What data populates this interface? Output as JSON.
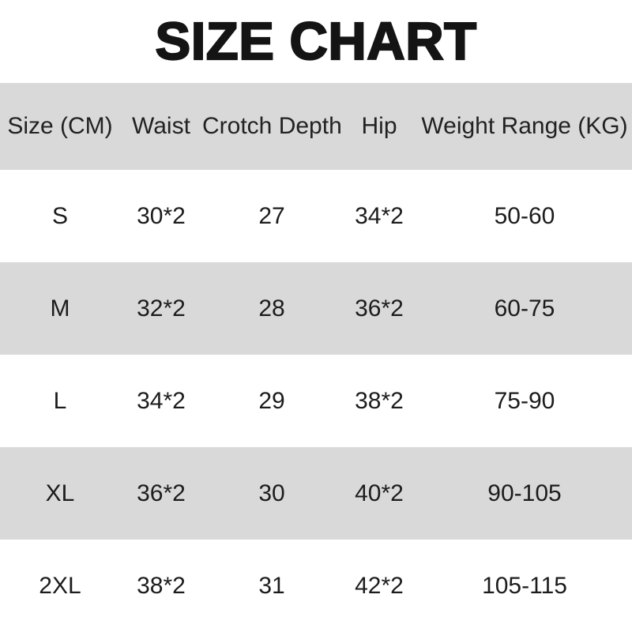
{
  "title": "SIZE CHART",
  "colors": {
    "background": "#ffffff",
    "shaded_row": "#d9d9d9",
    "text": "#1c1c1c"
  },
  "chart_data": {
    "type": "table",
    "title": "SIZE CHART",
    "columns": [
      "Size (CM)",
      "Waist",
      "Crotch Depth",
      "Hip",
      "Weight Range (KG)"
    ],
    "rows": [
      [
        "S",
        "30*2",
        "27",
        "34*2",
        "50-60"
      ],
      [
        "M",
        "32*2",
        "28",
        "36*2",
        "60-75"
      ],
      [
        "L",
        "34*2",
        "29",
        "38*2",
        "75-90"
      ],
      [
        "XL",
        "36*2",
        "30",
        "40*2",
        "90-105"
      ],
      [
        "2XL",
        "38*2",
        "31",
        "42*2",
        "105-115"
      ]
    ],
    "layout_hints": {
      "alternating_rows": true,
      "header_background": "#d9d9d9",
      "shaded_data_rows": [
        "M",
        "XL"
      ],
      "grid": false
    }
  }
}
